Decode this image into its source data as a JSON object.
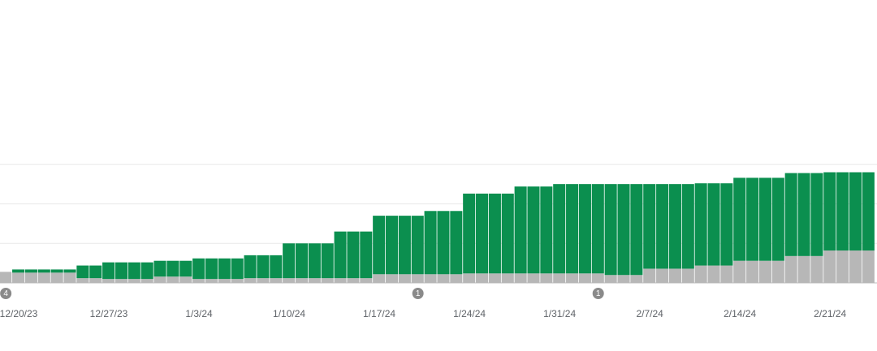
{
  "chart_data": {
    "type": "stacked-bar",
    "categories": [
      null,
      "12/20/23",
      null,
      null,
      null,
      null,
      null,
      null,
      "12/27/23",
      null,
      null,
      null,
      null,
      null,
      null,
      "1/3/24",
      null,
      null,
      null,
      null,
      null,
      null,
      "1/10/24",
      null,
      null,
      null,
      null,
      null,
      null,
      "1/17/24",
      null,
      null,
      null,
      null,
      null,
      null,
      "1/24/24",
      null,
      null,
      null,
      null,
      null,
      null,
      "1/31/24",
      null,
      null,
      null,
      null,
      null,
      null,
      "2/7/24",
      null,
      null,
      null,
      null,
      null,
      null,
      "2/14/24",
      null,
      null,
      null,
      null,
      null,
      null,
      "2/21/24",
      null,
      null,
      null
    ],
    "series": [
      {
        "color": "#b7b7b7",
        "values": [
          14,
          13,
          13,
          13,
          13,
          13,
          6,
          6,
          5,
          5,
          5,
          5,
          8,
          8,
          8,
          5,
          5,
          5,
          5,
          6,
          6,
          6,
          6,
          6,
          6,
          6,
          6,
          6,
          6,
          11,
          11,
          11,
          11,
          11,
          11,
          11,
          12,
          12,
          12,
          12,
          12,
          12,
          12,
          12,
          12,
          12,
          12,
          10,
          10,
          10,
          18,
          18,
          18,
          18,
          22,
          22,
          22,
          28,
          28,
          28,
          28,
          34,
          34,
          34,
          41,
          41,
          41,
          41
        ]
      },
      {
        "color": "#0b8f4f",
        "values": [
          0,
          4,
          4,
          4,
          4,
          4,
          16,
          16,
          21,
          21,
          21,
          21,
          20,
          20,
          20,
          26,
          26,
          26,
          26,
          29,
          29,
          29,
          44,
          44,
          44,
          44,
          59,
          59,
          59,
          74,
          74,
          74,
          74,
          80,
          80,
          80,
          101,
          101,
          101,
          101,
          110,
          110,
          110,
          113,
          113,
          113,
          113,
          115,
          115,
          115,
          107,
          107,
          107,
          107,
          104,
          104,
          104,
          105,
          105,
          105,
          105,
          105,
          105,
          105,
          99,
          99,
          99,
          99
        ]
      }
    ],
    "annotations": [
      {
        "index": 0,
        "label": 4
      },
      {
        "index": 32,
        "label": 1
      },
      {
        "index": 46,
        "label": 1
      }
    ],
    "ylim": [
      0,
      200
    ],
    "yticks": [
      0,
      50,
      100,
      150
    ],
    "grid": true
  }
}
